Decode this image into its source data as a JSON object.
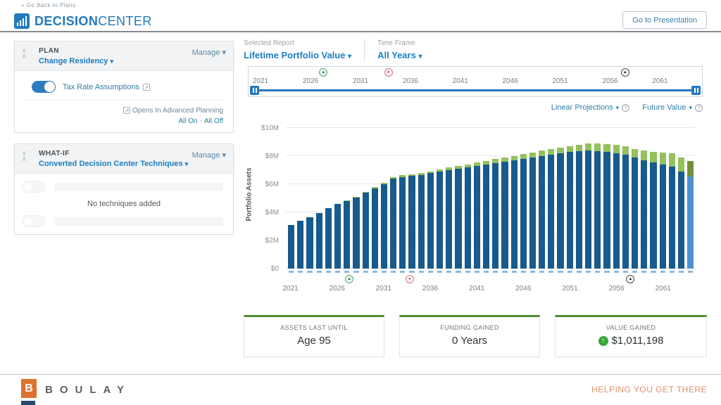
{
  "header": {
    "back_link": "Go Back to Plans",
    "logo_primary": "DECISION",
    "logo_secondary": "CENTER",
    "presentation_button": "Go to Presentation"
  },
  "icons": {
    "back": "«",
    "caret_down": "▾",
    "chevron_down": "∨",
    "chevron_up": "∧",
    "external_link": "↗",
    "question": "?",
    "up_arrow": "↑"
  },
  "plan_panel": {
    "title": "PLAN",
    "subtitle": "Change Residency",
    "manage_label": "Manage",
    "toggle_label": "Tax Rate Assumptions",
    "toggle_state": "on",
    "advanced_link": "Opens In Advanced Planning",
    "all_on": "All On",
    "all_off": "All Off"
  },
  "whatif_panel": {
    "title": "WHAT-IF",
    "subtitle": "Converted Decision Center Techniques",
    "manage_label": "Manage",
    "empty_text": "No techniques added"
  },
  "report": {
    "selected_report_label": "Selected Report",
    "selected_report_value": "Lifetime Portfolio Value",
    "time_frame_label": "Time Frame",
    "time_frame_value": "All Years"
  },
  "controls": {
    "projection_label": "Linear Projections",
    "value_label": "Future Value"
  },
  "timeline": {
    "start_year": 2021,
    "end_year": 2064,
    "tick_years": [
      2021,
      2026,
      2031,
      2036,
      2041,
      2046,
      2051,
      2056,
      2061
    ],
    "markers": [
      {
        "year": 2027.3,
        "type": "event-green",
        "glyph": "▲",
        "color": "#2e7d4f",
        "border": "#5aa878",
        "bg": "#eaf5ee"
      },
      {
        "year": 2033.8,
        "type": "event-red",
        "glyph": "●",
        "color": "#b5485a",
        "border": "#c97f8b",
        "bg": "#fdeef0"
      },
      {
        "year": 2057.5,
        "type": "event-black",
        "glyph": "▲",
        "color": "#222222",
        "border": "#4a4a4a",
        "bg": "#f4f4f6"
      }
    ]
  },
  "chart_data": {
    "type": "bar",
    "title": "Lifetime Portfolio Value",
    "xlabel": "",
    "ylabel": "Portfolio Assets",
    "ylim": [
      0,
      10
    ],
    "unit": "$M",
    "grid": true,
    "yticks": [
      0,
      2,
      4,
      6,
      8,
      10
    ],
    "ytick_labels": [
      "$0",
      "$2M",
      "$4M",
      "$6M",
      "$8M",
      "$10M"
    ],
    "xtick_years": [
      2021,
      2026,
      2031,
      2036,
      2041,
      2046,
      2051,
      2056,
      2061
    ],
    "x": [
      2021,
      2022,
      2023,
      2024,
      2025,
      2026,
      2027,
      2028,
      2029,
      2030,
      2031,
      2032,
      2033,
      2034,
      2035,
      2036,
      2037,
      2038,
      2039,
      2040,
      2041,
      2042,
      2043,
      2044,
      2045,
      2046,
      2047,
      2048,
      2049,
      2050,
      2051,
      2052,
      2053,
      2054,
      2055,
      2056,
      2057,
      2058,
      2059,
      2060,
      2061,
      2062,
      2063,
      2064
    ],
    "series": [
      {
        "name": "Portfolio Assets",
        "color": "#175a8e",
        "values": [
          3.1,
          3.38,
          3.66,
          3.96,
          4.28,
          4.58,
          4.82,
          5.06,
          5.38,
          5.7,
          6.02,
          6.42,
          6.52,
          6.6,
          6.66,
          6.78,
          6.92,
          7.02,
          7.12,
          7.22,
          7.32,
          7.42,
          7.52,
          7.62,
          7.72,
          7.82,
          7.92,
          8.02,
          8.12,
          8.2,
          8.28,
          8.34,
          8.38,
          8.36,
          8.3,
          8.22,
          8.1,
          7.88,
          7.7,
          7.55,
          7.4,
          7.26,
          6.91,
          6.56
        ]
      },
      {
        "name": "Future Value Gain",
        "color": "#94c05e",
        "values": [
          0,
          0,
          0,
          0,
          0,
          0,
          0.04,
          0.05,
          0.06,
          0.08,
          0.09,
          0.1,
          0.11,
          0.12,
          0.13,
          0.14,
          0.15,
          0.16,
          0.18,
          0.2,
          0.22,
          0.24,
          0.26,
          0.28,
          0.3,
          0.32,
          0.34,
          0.36,
          0.38,
          0.41,
          0.44,
          0.47,
          0.5,
          0.52,
          0.54,
          0.56,
          0.58,
          0.62,
          0.68,
          0.75,
          0.85,
          0.95,
          1.0,
          1.1
        ]
      }
    ],
    "highlight_last_bar": {
      "bar_color": "#4e90d4",
      "cap_color": "#71903c"
    }
  },
  "stats": [
    {
      "label": "ASSETS LAST UNTIL",
      "value": "Age 95"
    },
    {
      "label": "FUNDING GAINED",
      "value": "0 Years"
    },
    {
      "label": "VALUE GAINED",
      "value": "$1,011,198",
      "icon": "green-up-arrow"
    }
  ],
  "footer": {
    "logo_letter": "B",
    "brand": "BOULAY",
    "tagline": "HELPING YOU GET THERE"
  },
  "colors": {
    "accent_blue": "#2279bd",
    "bar_blue": "#175a8e",
    "bar_green": "#94c05e",
    "stat_border_green": "#4f8b2f",
    "brand_orange": "#dd7230"
  }
}
